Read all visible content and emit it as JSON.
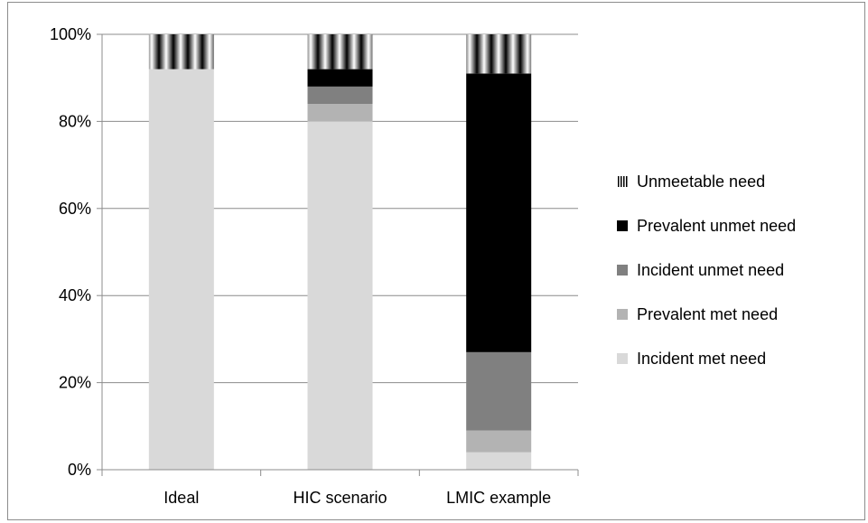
{
  "chart_data": {
    "type": "bar",
    "stacked": true,
    "categories": [
      "Ideal",
      "HIC scenario",
      "LMIC example"
    ],
    "yticks": [
      "0%",
      "20%",
      "40%",
      "60%",
      "80%",
      "100%"
    ],
    "ylim": [
      0,
      100
    ],
    "grid": true,
    "legend": "right",
    "series": [
      {
        "name": "Incident met need",
        "values": [
          92,
          80,
          4
        ],
        "color": "#d9d9d9",
        "pattern": "solid"
      },
      {
        "name": "Prevalent met need",
        "values": [
          0,
          4,
          5
        ],
        "color": "#b3b3b3",
        "pattern": "solid"
      },
      {
        "name": "Incident unmet need",
        "values": [
          0,
          4,
          18
        ],
        "color": "#808080",
        "pattern": "solid"
      },
      {
        "name": "Prevalent unmet need",
        "values": [
          0,
          4,
          64
        ],
        "color": "#000000",
        "pattern": "solid"
      },
      {
        "name": "Unmeetable need",
        "values": [
          8,
          8,
          9
        ],
        "color": "#555555",
        "pattern": "vertical-stripes"
      }
    ]
  }
}
